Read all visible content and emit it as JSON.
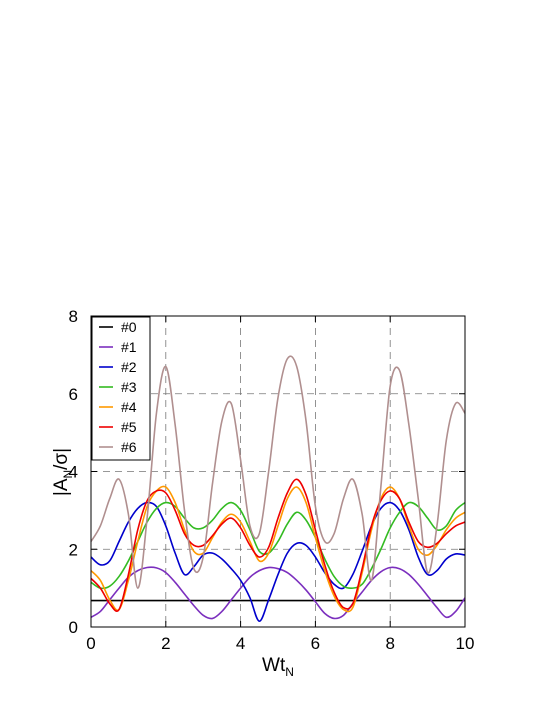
{
  "chart_data": {
    "type": "line",
    "title": "",
    "xlabel": "Wt",
    "xlabel_sub": "N",
    "ylabel_main": "|A",
    "ylabel_sub": "N",
    "ylabel_tail": "/σ|",
    "xlim": [
      0,
      10
    ],
    "ylim": [
      0,
      8
    ],
    "xticks": [
      0,
      2,
      4,
      6,
      8,
      10
    ],
    "yticks": [
      0,
      2,
      4,
      6,
      8
    ],
    "xtick_labels": [
      "0",
      "2",
      "4",
      "6",
      "8",
      "10"
    ],
    "ytick_labels": [
      "0",
      "2",
      "4",
      "6",
      "8"
    ],
    "grid": true,
    "legend_position": "top-left",
    "x": [
      0,
      0.25,
      0.5,
      0.75,
      1,
      1.25,
      1.5,
      1.75,
      2,
      2.25,
      2.5,
      2.75,
      3,
      3.25,
      3.5,
      3.75,
      4,
      4.25,
      4.5,
      4.75,
      5,
      5.25,
      5.5,
      5.75,
      6,
      6.25,
      6.5,
      6.75,
      7,
      7.25,
      7.5,
      7.75,
      8,
      8.25,
      8.5,
      8.75,
      9,
      9.25,
      9.5,
      9.75,
      10
    ],
    "series": [
      {
        "name": "#0",
        "color": "#000000",
        "values": [
          0.68,
          0.68,
          0.68,
          0.68,
          0.68,
          0.68,
          0.68,
          0.68,
          0.68,
          0.68,
          0.68,
          0.68,
          0.68,
          0.68,
          0.68,
          0.68,
          0.68,
          0.68,
          0.68,
          0.68,
          0.68,
          0.68,
          0.68,
          0.68,
          0.68,
          0.68,
          0.68,
          0.68,
          0.68,
          0.68,
          0.68,
          0.68,
          0.68,
          0.68,
          0.68,
          0.68,
          0.68,
          0.68,
          0.68,
          0.68,
          0.68
        ]
      },
      {
        "name": "#1",
        "color": "#7b2fbe",
        "values": [
          0.25,
          0.4,
          0.7,
          1.0,
          1.28,
          1.45,
          1.53,
          1.52,
          1.4,
          1.15,
          0.85,
          0.55,
          0.3,
          0.22,
          0.4,
          0.7,
          1.0,
          1.28,
          1.45,
          1.53,
          1.5,
          1.4,
          1.2,
          0.95,
          0.65,
          0.35,
          0.22,
          0.3,
          0.6,
          0.9,
          1.2,
          1.42,
          1.53,
          1.5,
          1.35,
          1.1,
          0.8,
          0.5,
          0.25,
          0.4,
          0.75
        ]
      },
      {
        "name": "#2",
        "color": "#0000cc",
        "values": [
          1.8,
          1.6,
          1.7,
          2.2,
          2.7,
          3.05,
          3.2,
          3.1,
          2.6,
          1.9,
          1.35,
          1.55,
          1.85,
          1.9,
          1.75,
          1.5,
          1.2,
          0.75,
          0.15,
          0.7,
          1.35,
          1.9,
          2.15,
          2.1,
          1.8,
          1.4,
          1.1,
          1.0,
          1.35,
          1.95,
          2.6,
          3.05,
          3.2,
          3.0,
          2.5,
          1.8,
          1.35,
          1.45,
          1.75,
          1.88,
          1.85
        ]
      },
      {
        "name": "#3",
        "color": "#33bb22",
        "values": [
          1.15,
          1.0,
          1.05,
          1.3,
          1.7,
          2.2,
          2.7,
          3.05,
          3.2,
          3.1,
          2.8,
          2.55,
          2.55,
          2.75,
          3.05,
          3.2,
          3.0,
          2.5,
          1.95,
          1.9,
          2.2,
          2.65,
          2.95,
          2.75,
          2.3,
          1.75,
          1.3,
          1.05,
          1.0,
          1.1,
          1.5,
          2.0,
          2.55,
          2.95,
          3.2,
          3.1,
          2.8,
          2.5,
          2.6,
          3.0,
          3.2
        ]
      },
      {
        "name": "#4",
        "color": "#ff9900",
        "values": [
          1.45,
          1.2,
          0.7,
          0.45,
          1.2,
          2.2,
          3.1,
          3.5,
          3.6,
          3.2,
          2.5,
          1.95,
          1.9,
          2.3,
          2.7,
          2.9,
          2.7,
          2.2,
          1.7,
          1.9,
          2.6,
          3.3,
          3.6,
          3.2,
          2.3,
          1.45,
          0.8,
          0.45,
          0.5,
          1.4,
          2.5,
          3.3,
          3.6,
          3.3,
          2.6,
          2.0,
          1.85,
          2.1,
          2.5,
          2.8,
          2.95
        ]
      },
      {
        "name": "#5",
        "color": "#ee0000",
        "values": [
          1.25,
          1.0,
          0.6,
          0.45,
          1.35,
          2.5,
          3.25,
          3.5,
          3.45,
          3.0,
          2.4,
          2.1,
          2.1,
          2.35,
          2.65,
          2.8,
          2.55,
          2.1,
          1.8,
          2.05,
          2.8,
          3.45,
          3.8,
          3.4,
          2.5,
          1.6,
          0.9,
          0.5,
          0.6,
          1.5,
          2.6,
          3.25,
          3.5,
          3.3,
          2.7,
          2.2,
          2.05,
          2.15,
          2.4,
          2.6,
          2.7
        ]
      },
      {
        "name": "#6",
        "color": "#b08f8f",
        "values": [
          2.2,
          2.6,
          3.3,
          3.8,
          2.9,
          1.0,
          2.8,
          5.5,
          6.7,
          5.2,
          3.0,
          1.5,
          1.8,
          3.7,
          5.3,
          5.75,
          4.3,
          2.6,
          2.4,
          4.0,
          5.9,
          6.9,
          6.7,
          5.3,
          3.1,
          2.2,
          2.4,
          3.3,
          3.8,
          2.9,
          1.2,
          3.6,
          6.2,
          6.6,
          5.2,
          3.3,
          1.4,
          2.6,
          4.8,
          5.75,
          5.5
        ]
      }
    ]
  }
}
